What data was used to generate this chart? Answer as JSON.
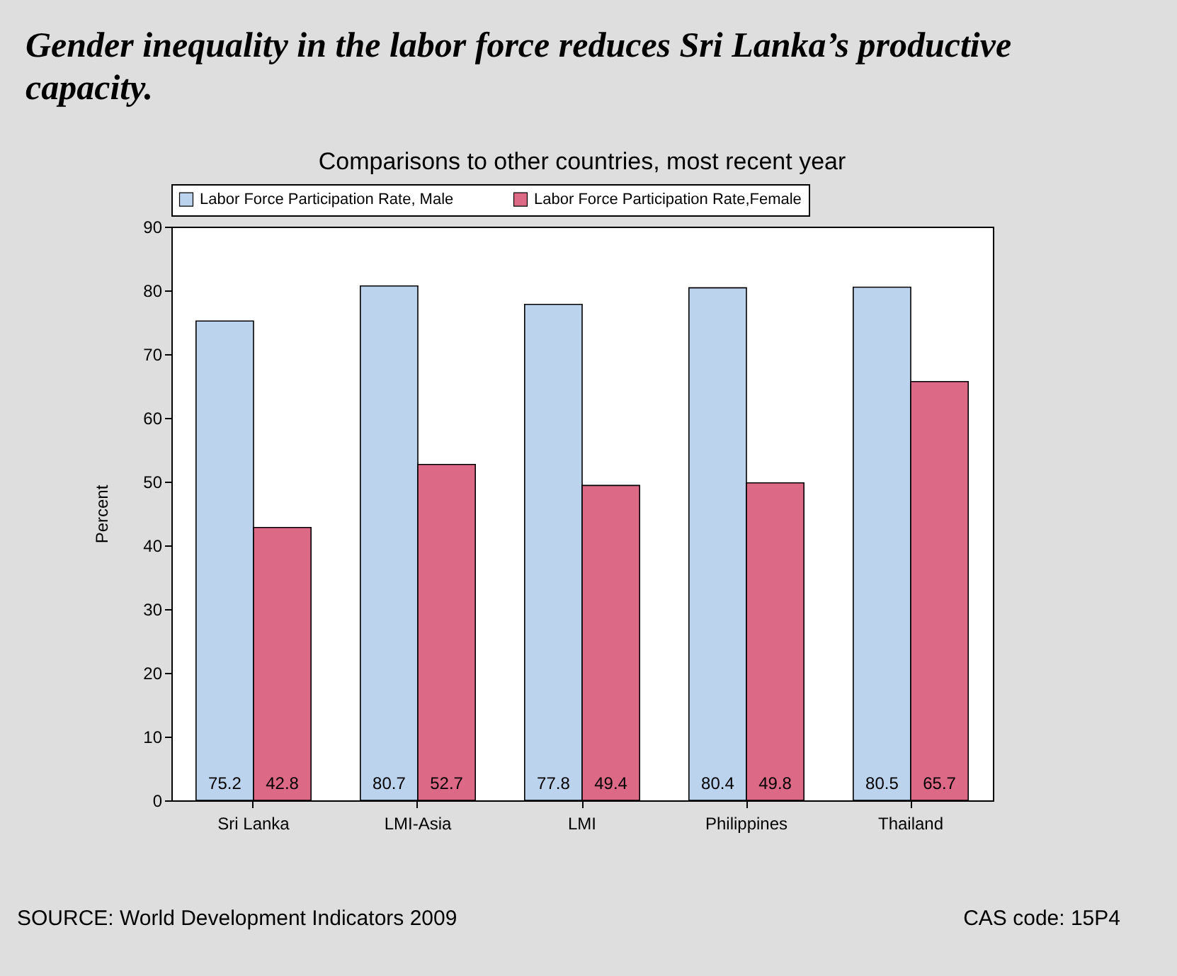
{
  "chart_data": {
    "type": "bar",
    "title": "Gender inequality in the labor force reduces Sri Lanka’s productive capacity.",
    "subtitle": "Comparisons to other countries, most recent year",
    "ylabel": "Percent",
    "categories": [
      "Sri Lanka",
      "LMI-Asia",
      "LMI",
      "Philippines",
      "Thailand"
    ],
    "series": [
      {
        "name": "Labor Force Participation Rate, Male",
        "color": "#bcd3ee",
        "values": [
          75.2,
          80.7,
          77.8,
          80.4,
          80.5
        ]
      },
      {
        "name": "Labor Force Participation Rate,Female",
        "color": "#dc6a86",
        "values": [
          42.8,
          52.7,
          49.4,
          49.8,
          65.7
        ]
      }
    ],
    "ylim": [
      0,
      90
    ],
    "yticks": [
      0,
      10,
      20,
      30,
      40,
      50,
      60,
      70,
      80,
      90
    ],
    "grid": false,
    "legend": "top",
    "data_labels": true,
    "annotations": [
      "SOURCE: World Development Indicators 2009",
      "CAS code: 15P4"
    ]
  }
}
